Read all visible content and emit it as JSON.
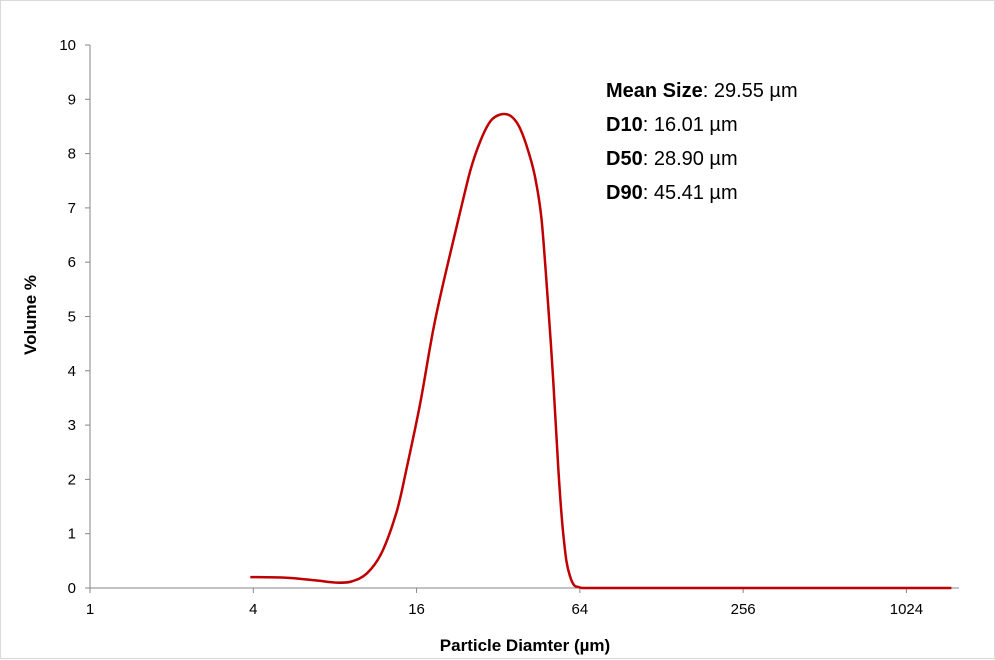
{
  "chart_data": {
    "type": "line",
    "title": "",
    "xlabel": "Particle Diamter (µm)",
    "ylabel": "Volume %",
    "x_scale": "log2",
    "xlim": [
      1,
      1600
    ],
    "ylim": [
      0,
      10
    ],
    "x_ticks": [
      "1",
      "4",
      "16",
      "64",
      "256",
      "1024"
    ],
    "x_tick_values": [
      1,
      4,
      16,
      64,
      256,
      1024
    ],
    "y_ticks": [
      "0",
      "1",
      "2",
      "3",
      "4",
      "5",
      "6",
      "7",
      "8",
      "9",
      "10"
    ],
    "y_tick_values": [
      0,
      1,
      2,
      3,
      4,
      5,
      6,
      7,
      8,
      9,
      10
    ],
    "grid": false,
    "series": [
      {
        "color": "#c00000",
        "x": [
          3.9,
          5.3,
          6.8,
          8.1,
          9.2,
          10.5,
          11.9,
          13.5,
          14.7,
          16.5,
          18.5,
          20.7,
          23.1,
          25.3,
          27.6,
          30.0,
          32.6,
          35.4,
          38.0,
          40.7,
          43.6,
          46.2,
          48.9,
          51.1,
          53.3,
          55.1,
          57.1,
          59.0,
          61.0,
          63.1,
          65.3,
          70,
          90,
          150,
          300,
          600,
          1000,
          1500
        ],
        "y": [
          0.2,
          0.19,
          0.14,
          0.1,
          0.12,
          0.27,
          0.65,
          1.4,
          2.2,
          3.4,
          4.8,
          5.9,
          6.9,
          7.7,
          8.25,
          8.6,
          8.72,
          8.7,
          8.52,
          8.15,
          7.6,
          6.8,
          5.2,
          3.8,
          2.2,
          1.2,
          0.5,
          0.2,
          0.05,
          0.02,
          0.0,
          0.0,
          0.0,
          0.0,
          0.0,
          0.0,
          0.0,
          0.0
        ]
      }
    ],
    "annotations": [
      {
        "key": "Mean Size",
        "value": ": 29.55 µm"
      },
      {
        "key": "D10",
        "value": ": 16.01 µm"
      },
      {
        "key": "D50",
        "value": ": 28.90 µm"
      },
      {
        "key": "D90",
        "value": ": 45.41 µm"
      }
    ]
  }
}
